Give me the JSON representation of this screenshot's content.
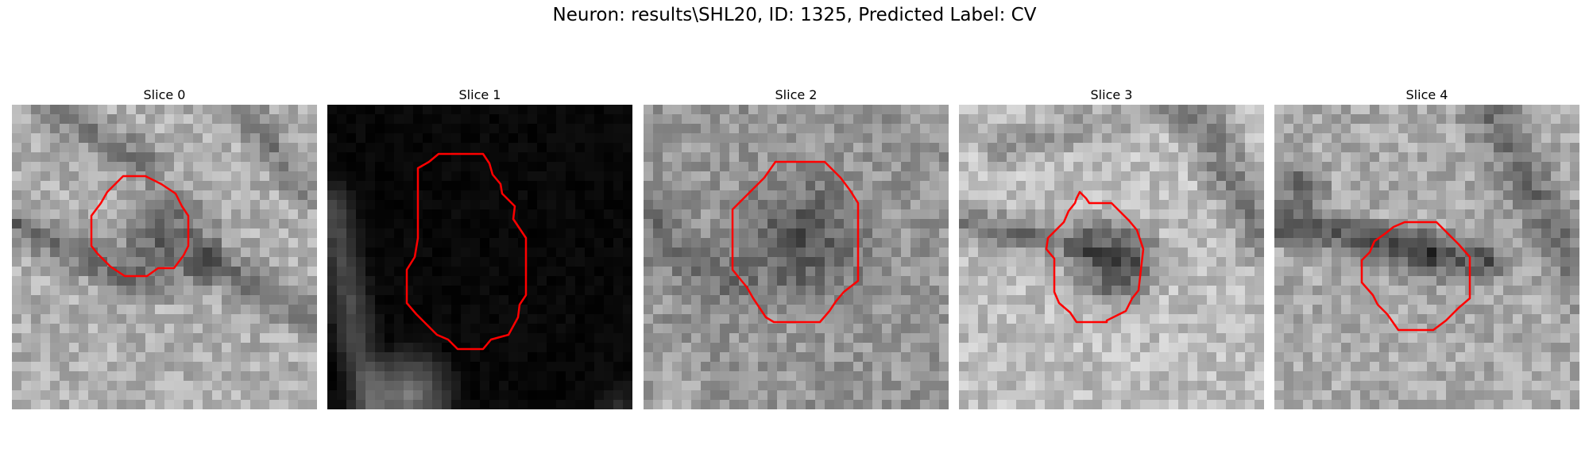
{
  "figure": {
    "title": "Neuron: results\\SHL20, ID: 1325, Predicted Label: CV"
  },
  "colors": {
    "contour": "#ff0000",
    "background": "#ffffff"
  },
  "panels": [
    {
      "title": "Slice 0",
      "image": "grayscale-em-slice",
      "tone": "mid-bright"
    },
    {
      "title": "Slice 1",
      "image": "grayscale-em-slice",
      "tone": "mostly-black"
    },
    {
      "title": "Slice 2",
      "image": "grayscale-em-slice",
      "tone": "mid-bright"
    },
    {
      "title": "Slice 3",
      "image": "grayscale-em-slice",
      "tone": "bright"
    },
    {
      "title": "Slice 4",
      "image": "grayscale-em-slice",
      "tone": "mid-bright"
    }
  ]
}
